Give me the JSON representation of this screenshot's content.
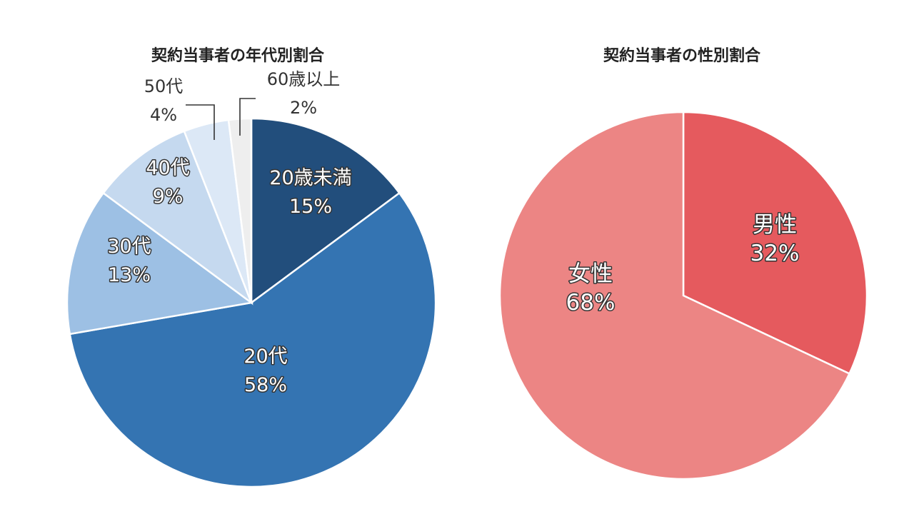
{
  "chart_data": [
    {
      "type": "pie",
      "title": "契約当事者の年代別割合",
      "slices": [
        {
          "label": "20歳未満",
          "value": 15,
          "value_label": "15%",
          "color": "#224E7C"
        },
        {
          "label": "20代",
          "value": 58,
          "value_label": "58%",
          "color": "#3474B2"
        },
        {
          "label": "30代",
          "value": 13,
          "value_label": "13%",
          "color": "#9DC0E4"
        },
        {
          "label": "40代",
          "value": 9,
          "value_label": "9%",
          "color": "#C5D9EF"
        },
        {
          "label": "50代",
          "value": 4,
          "value_label": "4%",
          "color": "#DCE8F6"
        },
        {
          "label": "60歳以上",
          "value": 2,
          "value_label": "2%",
          "color": "#EEEEEE"
        }
      ]
    },
    {
      "type": "pie",
      "title": "契約当事者の性別割合",
      "slices": [
        {
          "label": "男性",
          "value": 32,
          "value_label": "32%",
          "color": "#E55A5E"
        },
        {
          "label": "女性",
          "value": 68,
          "value_label": "68%",
          "color": "#EC8584"
        }
      ]
    }
  ]
}
